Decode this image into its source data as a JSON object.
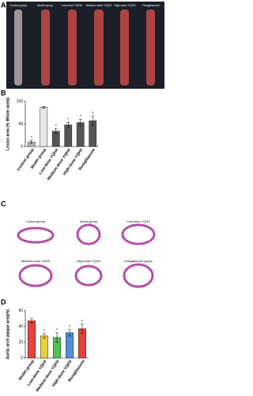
{
  "panel_a": {
    "label": "A",
    "captions": [
      "Control group",
      "Model group",
      "Low-dose YQHX",
      "Medium-dose YQHX",
      "High-dose YQHX",
      "Rosiglitazone"
    ]
  },
  "panel_c": {
    "label": "C",
    "captions": [
      "Control group",
      "Model group",
      "Low-dose YQHX",
      "Medium-dose YQHX",
      "High-dose YQHX",
      "Rosiglitazone group"
    ]
  },
  "chart_data": [
    {
      "type": "bar",
      "panel": "B",
      "ylabel": "Lesion area (% Whole aorta)",
      "categories": [
        "Control group",
        "Model group",
        "Low-dose YQHX",
        "Medium-dose YQHX",
        "High-dose YQHX",
        "Rosiglitazone"
      ],
      "values": [
        10,
        87,
        34,
        48,
        53,
        57
      ],
      "errors": [
        4,
        2,
        6,
        6,
        8,
        10
      ],
      "annotations": [
        "*",
        null,
        "*",
        "*",
        "*",
        "*"
      ],
      "colors": [
        "#bbbbbb",
        "#e8e8e8",
        "#555555",
        "#555555",
        "#555555",
        "#555555"
      ],
      "ylim": [
        0,
        100
      ],
      "yticks": [
        0,
        50,
        100
      ]
    },
    {
      "type": "bar",
      "panel": "D",
      "ylabel": "Aortic arch plaque area(%)",
      "categories": [
        "Model group",
        "Low-dose YQHX",
        "Medium-dose YQHX",
        "High-dose YQHX",
        "Rosiglitazone"
      ],
      "values": [
        47,
        28,
        26,
        32,
        37
      ],
      "errors": [
        3,
        3,
        6,
        4,
        6
      ],
      "annotations": [
        null,
        "*",
        "*",
        "*",
        "*"
      ],
      "colors": [
        "#e8413c",
        "#e8d23c",
        "#4fc24f",
        "#4f8fd9",
        "#e8413c"
      ],
      "ylim": [
        0,
        60
      ],
      "yticks": [
        0,
        20,
        40,
        60
      ]
    }
  ]
}
